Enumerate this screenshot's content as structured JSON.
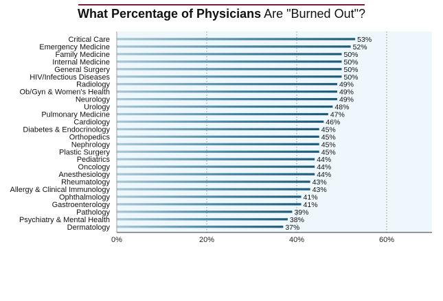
{
  "chart_data": {
    "type": "bar",
    "orientation": "horizontal",
    "title": "What Percentage of Physicians Are \"Burned Out\"?",
    "title_parts": {
      "bold": "What Percentage of Physicians",
      "normal": "Are \"Burned Out\"?"
    },
    "categories": [
      "Critical Care",
      "Emergency Medicine",
      "Family Medicine",
      "Internal Medicine",
      "General Surgery",
      "HIV/Infectious Diseases",
      "Radiology",
      "Ob/Gyn & Women's Health",
      "Neurology",
      "Urology",
      "Pulmonary Medicine",
      "Cardiology",
      "Diabetes & Endocrinology",
      "Orthopedics",
      "Nephrology",
      "Plastic Surgery",
      "Pediatrics",
      "Oncology",
      "Anesthesiology",
      "Rheumatology",
      "Allergy & Clinical Immunology",
      "Ophthalmology",
      "Gastroenterology",
      "Pathology",
      "Psychiatry & Mental Health",
      "Dermatology"
    ],
    "values": [
      53,
      52,
      50,
      50,
      50,
      50,
      49,
      49,
      49,
      48,
      47,
      46,
      45,
      45,
      45,
      45,
      44,
      44,
      44,
      43,
      43,
      41,
      41,
      39,
      38,
      37
    ],
    "value_labels": [
      "53%",
      "52%",
      "50%",
      "50%",
      "50%",
      "50%",
      "49%",
      "49%",
      "49%",
      "48%",
      "47%",
      "46%",
      "45%",
      "45%",
      "45%",
      "45%",
      "44%",
      "44%",
      "44%",
      "43%",
      "43%",
      "41%",
      "41%",
      "39%",
      "38%",
      "37%"
    ],
    "xticks": [
      0,
      20,
      40,
      60
    ],
    "xtick_labels": [
      "0%",
      "20%",
      "40%",
      "60%"
    ],
    "xlim": [
      0,
      70
    ],
    "grid": "vertical dotted",
    "colors": {
      "bar": "#1e5a78",
      "bar_light": "#a9c8d6",
      "plot_bg": "#eef7fc",
      "title_rule": "#7b1d3a"
    }
  }
}
